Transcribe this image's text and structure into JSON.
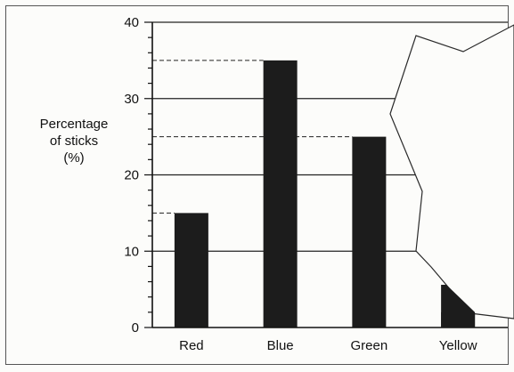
{
  "chart_data": {
    "type": "bar",
    "title": "",
    "ylabel_lines": [
      "Percentage",
      "of sticks",
      "(%)"
    ],
    "xlabel": "",
    "categories": [
      "Red",
      "Blue",
      "Green",
      "Yellow"
    ],
    "values": [
      15,
      35,
      25,
      2
    ],
    "ylim": [
      0,
      40
    ],
    "yticks": [
      0,
      10,
      20,
      30,
      40
    ],
    "grid": true,
    "legend": "none",
    "colors": {
      "bar": "#1c1c1c",
      "grid": "#222222",
      "frame": "#555555"
    },
    "note": "Right portion of the plot is covered by a torn paper edge; Yellow bar partially obscured (≈2)."
  }
}
